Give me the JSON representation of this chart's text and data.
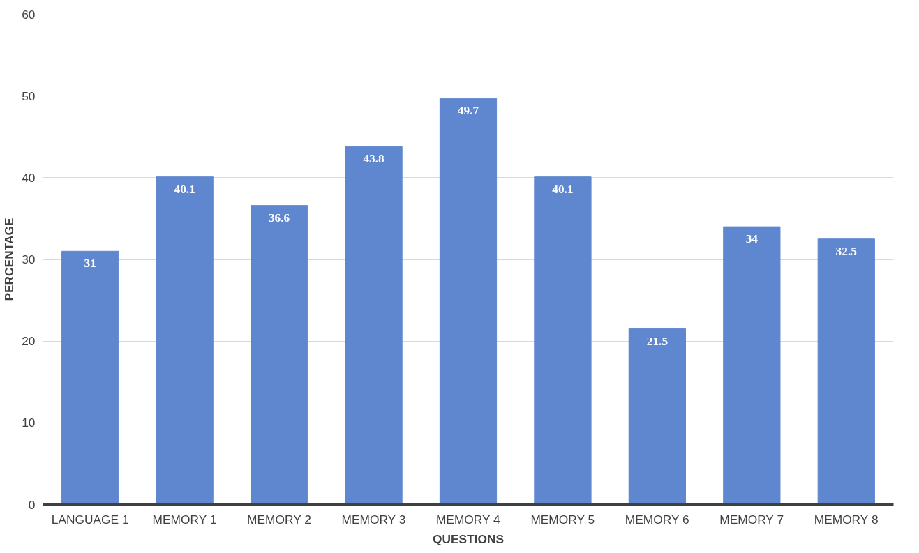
{
  "chart_data": {
    "type": "bar",
    "xlabel": "QUESTIONS",
    "ylabel": "PERCENTAGE",
    "categories": [
      "LANGUAGE 1",
      "MEMORY 1",
      "MEMORY 2",
      "MEMORY 3",
      "MEMORY 4",
      "MEMORY 5",
      "MEMORY 6",
      "MEMORY 7",
      "MEMORY 8"
    ],
    "values": [
      31,
      40.1,
      36.6,
      43.8,
      49.7,
      40.1,
      21.5,
      34,
      32.5
    ],
    "color": "#5f87cf",
    "ylim": [
      0,
      60
    ],
    "yticks": [
      0,
      10,
      20,
      30,
      40,
      50,
      60
    ],
    "grid": "y",
    "data_labels": true
  }
}
